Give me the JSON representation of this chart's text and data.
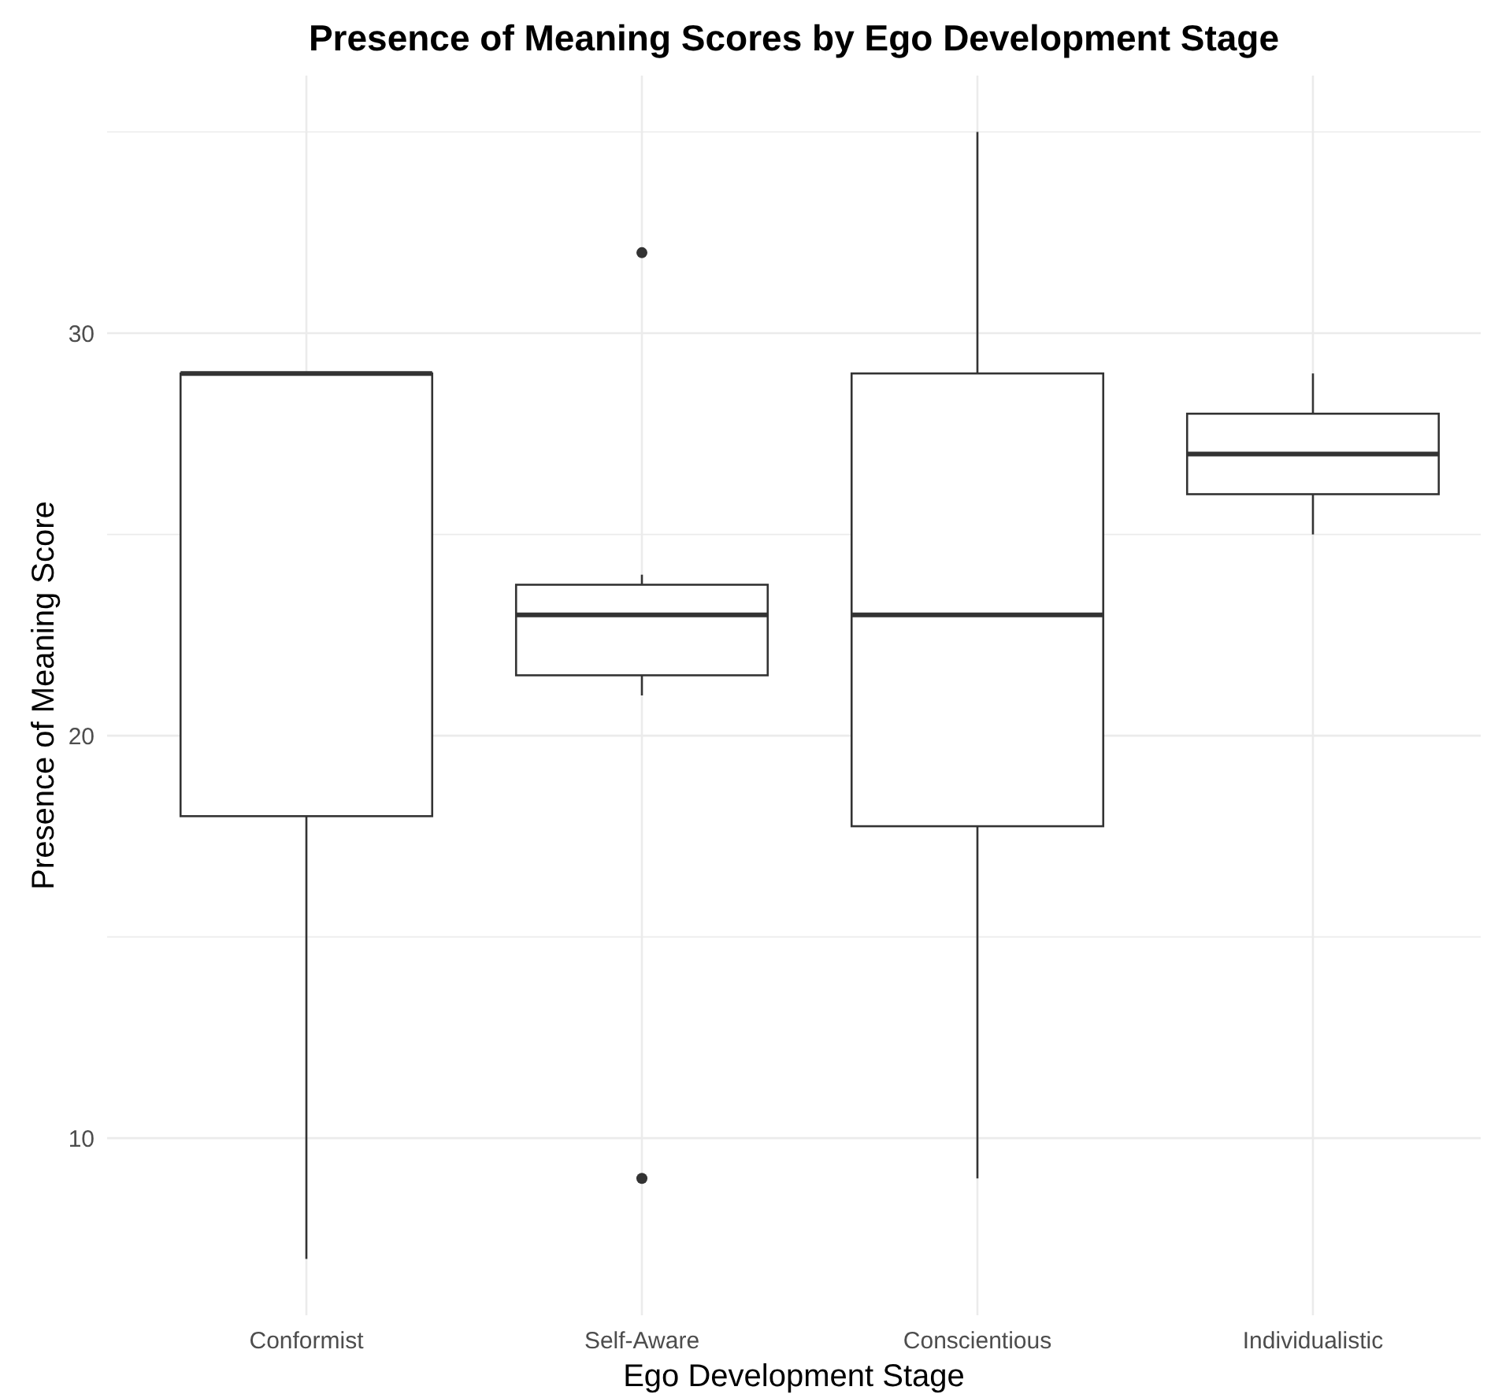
{
  "chart_data": {
    "type": "box",
    "title": "Presence of Meaning Scores by Ego Development Stage",
    "xlabel": "Ego Development Stage",
    "ylabel": "Presence of Meaning Score",
    "categories": [
      "Conformist",
      "Self-Aware",
      "Conscientious",
      "Individualistic"
    ],
    "boxes": [
      {
        "low": 7,
        "q1": 18,
        "median": 29,
        "q3": 29,
        "high": 29
      },
      {
        "low": 21,
        "q1": 21.5,
        "median": 23,
        "q3": 23.75,
        "high": 24,
        "outliers": [
          32,
          9
        ]
      },
      {
        "low": 9,
        "q1": 17.75,
        "median": 23,
        "q3": 29,
        "high": 35
      },
      {
        "low": 25,
        "q1": 26,
        "median": 27,
        "q3": 28,
        "high": 29
      }
    ],
    "ylim": [
      5.6,
      36.4
    ],
    "yticks": [
      10,
      {
        "value": 15,
        "label": null
      },
      20,
      {
        "value": 25,
        "label": null
      },
      30,
      {
        "value": 35,
        "label": null
      }
    ],
    "grid": true
  }
}
